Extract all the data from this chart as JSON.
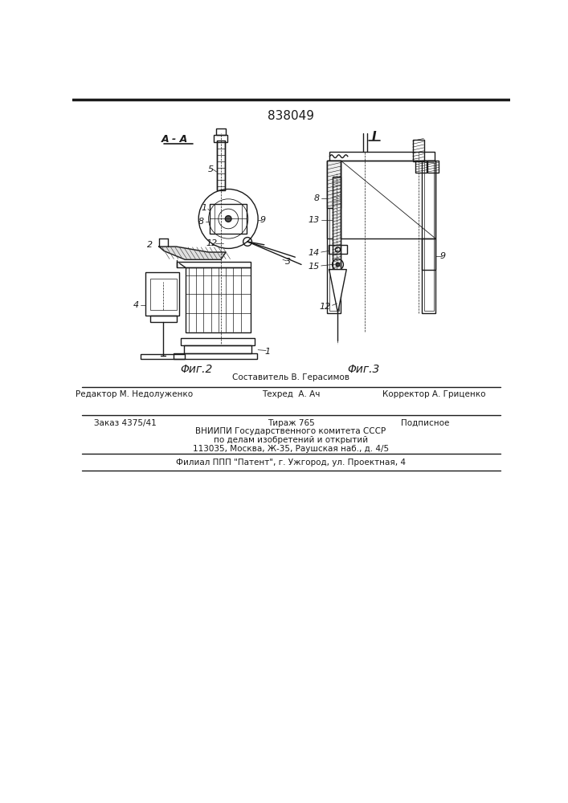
{
  "patent_number": "838049",
  "fig2_label": "Φиг.2",
  "fig3_label": "Φиг.3",
  "section_label": "A - A",
  "view1_label": "I",
  "background_color": "#ffffff",
  "line_color": "#1a1a1a",
  "footer_above": "Составитель В. Герасимов",
  "footer_line1_left": "Редактор М. Недолуженко",
  "footer_line1_center": "Техред  А. Ач",
  "footer_line1_right": "Корректор А. Гриценко",
  "footer_line2_left": "Заказ 4375/41",
  "footer_line2_center": "Тираж 765",
  "footer_line2_right": "Подписное",
  "footer_line3": "ВНИИПИ Государственного комитета СССР",
  "footer_line4": "по делам изобретений и открытий",
  "footer_line5": "113035, Москва, Ж-35, Раушская наб., д. 4/5",
  "footer_line6": "Филиал ППП \"Патент\", г. Ужгород, ул. Проектная, 4"
}
